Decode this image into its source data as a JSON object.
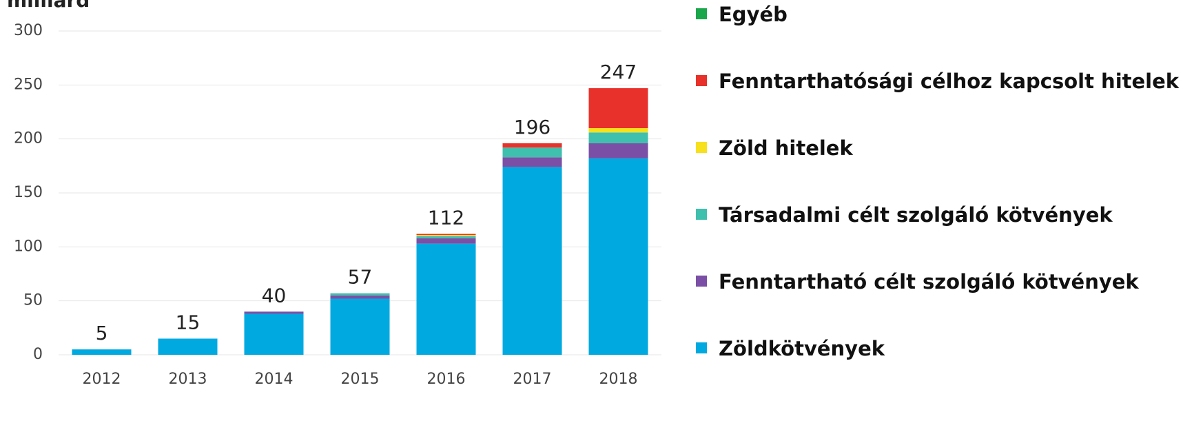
{
  "chart_data": {
    "type": "stacked_bar",
    "y_label": "milliárd",
    "categories": [
      "2012",
      "2013",
      "2014",
      "2015",
      "2016",
      "2017",
      "2018"
    ],
    "series": [
      {
        "name": "Zöldkötvények",
        "color": "#00a9e0",
        "values": [
          5,
          15,
          38,
          52,
          103,
          174,
          182
        ]
      },
      {
        "name": "Fenntartható célt szolgáló kötvények",
        "color": "#7b4fa6",
        "values": [
          0,
          0,
          2,
          3,
          5,
          9,
          14
        ]
      },
      {
        "name": "Társadalmi célt szolgáló kötvények",
        "color": "#3fbfad",
        "values": [
          0,
          0,
          0,
          2,
          2,
          9,
          10
        ]
      },
      {
        "name": "Zöld hitelek",
        "color": "#f7e01e",
        "values": [
          0,
          0,
          0,
          0,
          1,
          0,
          4
        ]
      },
      {
        "name": "Fenntarthatósági célhoz kapcsolt hitelek",
        "color": "#e8312a",
        "values": [
          0,
          0,
          0,
          0,
          1,
          4,
          37
        ]
      },
      {
        "name": "Egyéb",
        "color": "#1aa64a",
        "values": [
          0,
          0,
          0,
          0,
          0,
          0,
          0
        ]
      }
    ],
    "totals": [
      5,
      15,
      40,
      57,
      112,
      196,
      247
    ],
    "ylim": [
      0,
      300
    ],
    "yticks": [
      0,
      50,
      100,
      150,
      200,
      250,
      300
    ],
    "grid": true
  }
}
